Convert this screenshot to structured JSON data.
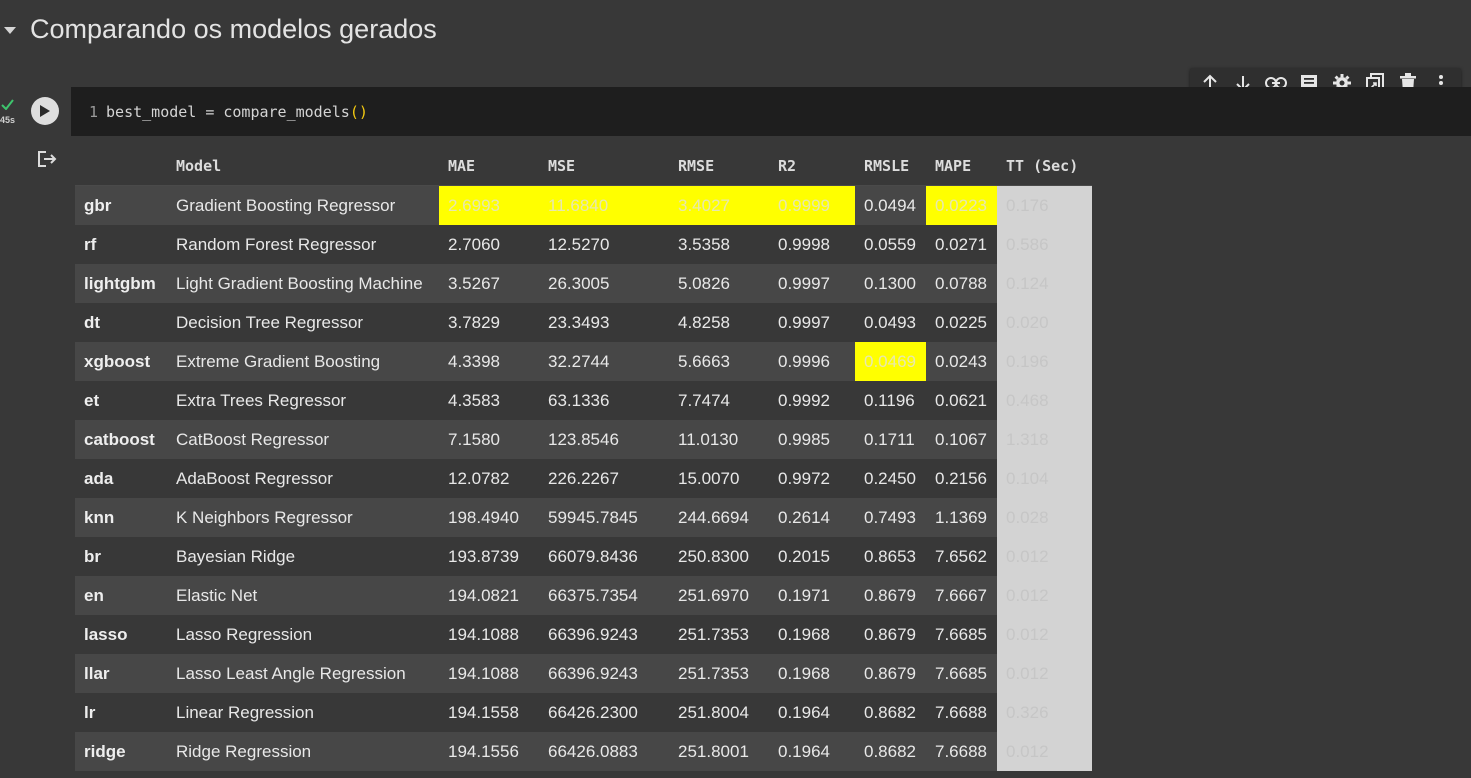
{
  "section": {
    "title": "Comparando os modelos gerados"
  },
  "toolbar": {
    "icons": [
      "arrow-up-icon",
      "arrow-down-icon",
      "link-icon",
      "comment-icon",
      "gear-icon",
      "mirror-cell-icon",
      "trash-icon",
      "more-vert-icon"
    ]
  },
  "cell": {
    "status_time": "45s",
    "line_number": "1",
    "code_var": "best_model",
    "code_op": "=",
    "code_fn": "compare_models",
    "code_open": "(",
    "code_close": ")"
  },
  "colors": {
    "highlight": "#ffff00",
    "tt_column": "#d3d3d3",
    "row_odd": "#474747",
    "row_even": "#383838"
  },
  "table": {
    "headers": [
      "",
      "Model",
      "MAE",
      "MSE",
      "RMSE",
      "R2",
      "RMSLE",
      "MAPE",
      "TT (Sec)"
    ],
    "rows": [
      {
        "idx": "gbr",
        "model": "Gradient Boosting Regressor",
        "mae": "2.6993",
        "mse": "11.6840",
        "rmse": "3.4027",
        "r2": "0.9999",
        "rmsle": "0.0494",
        "mape": "0.0223",
        "tt": "0.176"
      },
      {
        "idx": "rf",
        "model": "Random Forest Regressor",
        "mae": "2.7060",
        "mse": "12.5270",
        "rmse": "3.5358",
        "r2": "0.9998",
        "rmsle": "0.0559",
        "mape": "0.0271",
        "tt": "0.586"
      },
      {
        "idx": "lightgbm",
        "model": "Light Gradient Boosting Machine",
        "mae": "3.5267",
        "mse": "26.3005",
        "rmse": "5.0826",
        "r2": "0.9997",
        "rmsle": "0.1300",
        "mape": "0.0788",
        "tt": "0.124"
      },
      {
        "idx": "dt",
        "model": "Decision Tree Regressor",
        "mae": "3.7829",
        "mse": "23.3493",
        "rmse": "4.8258",
        "r2": "0.9997",
        "rmsle": "0.0493",
        "mape": "0.0225",
        "tt": "0.020"
      },
      {
        "idx": "xgboost",
        "model": "Extreme Gradient Boosting",
        "mae": "4.3398",
        "mse": "32.2744",
        "rmse": "5.6663",
        "r2": "0.9996",
        "rmsle": "0.0469",
        "mape": "0.0243",
        "tt": "0.196"
      },
      {
        "idx": "et",
        "model": "Extra Trees Regressor",
        "mae": "4.3583",
        "mse": "63.1336",
        "rmse": "7.7474",
        "r2": "0.9992",
        "rmsle": "0.1196",
        "mape": "0.0621",
        "tt": "0.468"
      },
      {
        "idx": "catboost",
        "model": "CatBoost Regressor",
        "mae": "7.1580",
        "mse": "123.8546",
        "rmse": "11.0130",
        "r2": "0.9985",
        "rmsle": "0.1711",
        "mape": "0.1067",
        "tt": "1.318"
      },
      {
        "idx": "ada",
        "model": "AdaBoost Regressor",
        "mae": "12.0782",
        "mse": "226.2267",
        "rmse": "15.0070",
        "r2": "0.9972",
        "rmsle": "0.2450",
        "mape": "0.2156",
        "tt": "0.104"
      },
      {
        "idx": "knn",
        "model": "K Neighbors Regressor",
        "mae": "198.4940",
        "mse": "59945.7845",
        "rmse": "244.6694",
        "r2": "0.2614",
        "rmsle": "0.7493",
        "mape": "1.1369",
        "tt": "0.028"
      },
      {
        "idx": "br",
        "model": "Bayesian Ridge",
        "mae": "193.8739",
        "mse": "66079.8436",
        "rmse": "250.8300",
        "r2": "0.2015",
        "rmsle": "0.8653",
        "mape": "7.6562",
        "tt": "0.012"
      },
      {
        "idx": "en",
        "model": "Elastic Net",
        "mae": "194.0821",
        "mse": "66375.7354",
        "rmse": "251.6970",
        "r2": "0.1971",
        "rmsle": "0.8679",
        "mape": "7.6667",
        "tt": "0.012"
      },
      {
        "idx": "lasso",
        "model": "Lasso Regression",
        "mae": "194.1088",
        "mse": "66396.9243",
        "rmse": "251.7353",
        "r2": "0.1968",
        "rmsle": "0.8679",
        "mape": "7.6685",
        "tt": "0.012"
      },
      {
        "idx": "llar",
        "model": "Lasso Least Angle Regression",
        "mae": "194.1088",
        "mse": "66396.9243",
        "rmse": "251.7353",
        "r2": "0.1968",
        "rmsle": "0.8679",
        "mape": "7.6685",
        "tt": "0.012"
      },
      {
        "idx": "lr",
        "model": "Linear Regression",
        "mae": "194.1558",
        "mse": "66426.2300",
        "rmse": "251.8004",
        "r2": "0.1964",
        "rmsle": "0.8682",
        "mape": "7.6688",
        "tt": "0.326"
      },
      {
        "idx": "ridge",
        "model": "Ridge Regression",
        "mae": "194.1556",
        "mse": "66426.0883",
        "rmse": "251.8001",
        "r2": "0.1964",
        "rmsle": "0.8682",
        "mape": "7.6688",
        "tt": "0.012"
      }
    ],
    "highlights": {
      "gbr": [
        "mae",
        "mse",
        "rmse",
        "r2",
        "mape"
      ],
      "xgboost": [
        "rmsle"
      ]
    }
  }
}
